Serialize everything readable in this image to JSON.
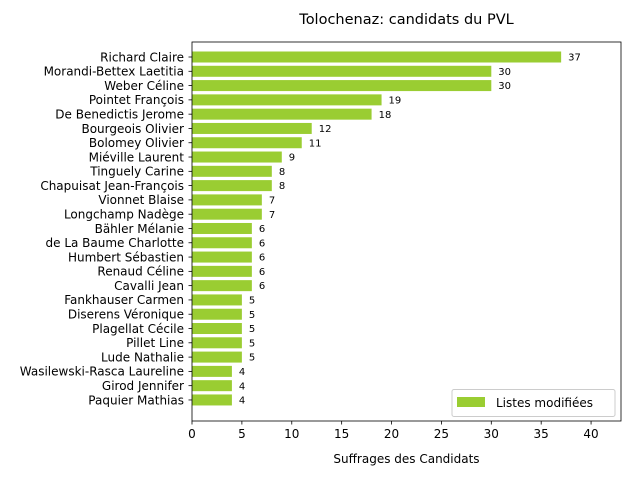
{
  "chart_data": {
    "type": "bar",
    "orientation": "horizontal",
    "title": "Tolochenaz: candidats du PVL",
    "xlabel": "Suffrages des Candidats",
    "ylabel": "",
    "xlim": [
      0,
      43
    ],
    "xticks": [
      0,
      5,
      10,
      15,
      20,
      25,
      30,
      35,
      40
    ],
    "grid": false,
    "legend_position": "lower-right",
    "bar_color": "#9acd32",
    "categories": [
      "Richard Claire",
      "Morandi-Bettex Laetitia",
      "Weber Céline",
      "Pointet François",
      "De Benedictis Jerome",
      "Bourgeois Olivier",
      "Bolomey Olivier",
      "Miéville Laurent",
      "Tinguely Carine",
      "Chapuisat Jean-François",
      "Vionnet Blaise",
      "Longchamp Nadège",
      "Bähler Mélanie",
      "de La Baume Charlotte",
      "Humbert Sébastien",
      "Renaud Céline",
      "Cavalli Jean",
      "Fankhauser Carmen",
      "Diserens Véronique",
      "Plagellat Cécile",
      "Pillet Line",
      "Lude Nathalie",
      "Wasilewski-Rasca Laureline",
      "Girod Jennifer",
      "Paquier Mathias"
    ],
    "series": [
      {
        "name": "Listes modifiées",
        "values": [
          37,
          30,
          30,
          19,
          18,
          12,
          11,
          9,
          8,
          8,
          7,
          7,
          6,
          6,
          6,
          6,
          6,
          5,
          5,
          5,
          5,
          5,
          4,
          4,
          4
        ]
      }
    ]
  }
}
